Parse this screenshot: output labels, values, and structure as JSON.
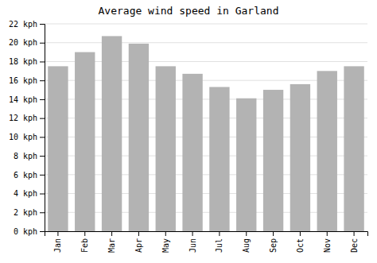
{
  "chart_data": {
    "type": "bar",
    "title": "Average wind speed in Garland",
    "categories": [
      "Jan",
      "Feb",
      "Mar",
      "Apr",
      "May",
      "Jun",
      "Jul",
      "Aug",
      "Sep",
      "Oct",
      "Nov",
      "Dec"
    ],
    "values": [
      17.5,
      19.0,
      20.7,
      19.9,
      17.5,
      16.7,
      15.3,
      14.1,
      15.0,
      15.6,
      17.0,
      17.5
    ],
    "color": "#b3b3b3",
    "ylim": [
      0,
      22
    ],
    "yticks": [
      {
        "value": 0,
        "label": "0 kph"
      },
      {
        "value": 2,
        "label": "2 kph"
      },
      {
        "value": 4,
        "label": "4 kph"
      },
      {
        "value": 6,
        "label": "6 kph"
      },
      {
        "value": 8,
        "label": "8 kph"
      },
      {
        "value": 10,
        "label": "10 kph"
      },
      {
        "value": 12,
        "label": "12 kph"
      },
      {
        "value": 14,
        "label": "14 kph"
      },
      {
        "value": 16,
        "label": "16 kph"
      },
      {
        "value": 18,
        "label": "18 kph"
      },
      {
        "value": 20,
        "label": "20 kph"
      },
      {
        "value": 22,
        "label": "22 kph"
      }
    ],
    "grid": true
  }
}
